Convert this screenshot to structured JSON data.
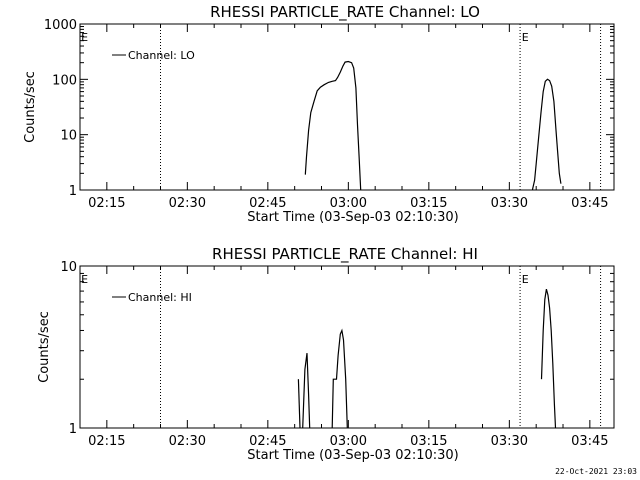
{
  "timestamp": "22-Oct-2021 23:03",
  "chart_data": [
    {
      "type": "line",
      "title": "RHESSI PARTICLE_RATE Channel: LO",
      "xlabel": "Start Time (03-Sep-03 02:10:30)",
      "ylabel": "Counts/sec",
      "yscale": "log",
      "xlim_minutes": [
        130.0,
        229.5
      ],
      "ylim": [
        1,
        1000
      ],
      "xticks": [
        {
          "t": 135,
          "label": "02:15"
        },
        {
          "t": 150,
          "label": "02:30"
        },
        {
          "t": 165,
          "label": "02:45"
        },
        {
          "t": 180,
          "label": "03:00"
        },
        {
          "t": 195,
          "label": "03:15"
        },
        {
          "t": 210,
          "label": "03:30"
        },
        {
          "t": 225,
          "label": "03:45"
        }
      ],
      "yticks": [
        {
          "v": 1,
          "label": "1"
        },
        {
          "v": 10,
          "label": "10"
        },
        {
          "v": 100,
          "label": "100"
        },
        {
          "v": 1000,
          "label": "1000"
        }
      ],
      "minor_yticks": [
        2,
        3,
        4,
        5,
        6,
        7,
        8,
        9,
        20,
        30,
        40,
        50,
        60,
        70,
        80,
        90,
        200,
        300,
        400,
        500,
        600,
        700,
        800,
        900
      ],
      "legend": "Channel: LO",
      "vlines": [
        145,
        212,
        227
      ],
      "markers": [
        {
          "t": 130.2,
          "text": "E"
        },
        {
          "t": 212.3,
          "text": "E"
        }
      ],
      "segments": [
        [
          [
            172.0,
            1.9
          ],
          [
            172.0,
            2.0
          ],
          [
            172.2,
            4.0
          ],
          [
            172.6,
            12
          ],
          [
            173.0,
            25
          ],
          [
            173.6,
            40
          ],
          [
            174.2,
            62
          ],
          [
            174.8,
            72
          ],
          [
            175.5,
            80
          ],
          [
            176.3,
            88
          ],
          [
            177.0,
            92
          ],
          [
            177.6,
            95
          ],
          [
            178.0,
            108
          ],
          [
            178.5,
            135
          ],
          [
            179.0,
            175
          ],
          [
            179.4,
            205
          ],
          [
            180.0,
            210
          ],
          [
            180.6,
            200
          ],
          [
            181.0,
            160
          ],
          [
            181.4,
            70
          ],
          [
            181.7,
            15
          ],
          [
            182.0,
            4
          ],
          [
            182.3,
            1
          ]
        ],
        [
          [
            214.3,
            1
          ],
          [
            214.7,
            1.5
          ],
          [
            215.0,
            3
          ],
          [
            215.5,
            10
          ],
          [
            215.9,
            25
          ],
          [
            216.3,
            60
          ],
          [
            216.7,
            92
          ],
          [
            217.1,
            100
          ],
          [
            217.5,
            95
          ],
          [
            217.9,
            75
          ],
          [
            218.3,
            40
          ],
          [
            218.7,
            12
          ],
          [
            219.0,
            5
          ],
          [
            219.3,
            2
          ],
          [
            219.6,
            1.3
          ]
        ]
      ]
    },
    {
      "type": "line",
      "title": "RHESSI PARTICLE_RATE Channel: HI",
      "xlabel": "Start Time (03-Sep-03 02:10:30)",
      "ylabel": "Counts/sec",
      "yscale": "log",
      "xlim_minutes": [
        130.0,
        229.5
      ],
      "ylim": [
        1,
        10
      ],
      "xticks": [
        {
          "t": 135,
          "label": "02:15"
        },
        {
          "t": 150,
          "label": "02:30"
        },
        {
          "t": 165,
          "label": "02:45"
        },
        {
          "t": 180,
          "label": "03:00"
        },
        {
          "t": 195,
          "label": "03:15"
        },
        {
          "t": 210,
          "label": "03:30"
        },
        {
          "t": 225,
          "label": "03:45"
        }
      ],
      "yticks": [
        {
          "v": 1,
          "label": "1"
        },
        {
          "v": 10,
          "label": "10"
        }
      ],
      "minor_yticks": [
        2,
        3,
        4,
        5,
        6,
        7,
        8,
        9
      ],
      "legend": "Channel: HI",
      "vlines": [
        145,
        212,
        227
      ],
      "markers": [
        {
          "t": 130.2,
          "text": "E"
        },
        {
          "t": 212.3,
          "text": "E"
        }
      ],
      "segments": [
        [
          [
            170.7,
            2.0
          ],
          [
            171.0,
            1.0
          ]
        ],
        [
          [
            171.5,
            1.0
          ],
          [
            171.9,
            2.3
          ],
          [
            172.3,
            2.9
          ],
          [
            172.6,
            1.6
          ],
          [
            172.8,
            1.0
          ]
        ],
        [
          [
            177.0,
            1.0
          ],
          [
            177.2,
            2.0
          ],
          [
            177.8,
            2.0
          ],
          [
            178.1,
            2.8
          ],
          [
            178.5,
            3.8
          ],
          [
            178.8,
            4.0
          ],
          [
            179.1,
            3.5
          ],
          [
            179.5,
            2.0
          ],
          [
            179.8,
            1.0
          ]
        ],
        [
          [
            216.0,
            2.0
          ],
          [
            216.3,
            4.0
          ],
          [
            216.6,
            6.2
          ],
          [
            216.9,
            7.2
          ],
          [
            217.2,
            6.6
          ],
          [
            217.5,
            5.5
          ],
          [
            217.8,
            4.0
          ],
          [
            218.1,
            2.5
          ],
          [
            218.4,
            1.4
          ],
          [
            218.6,
            1.0
          ]
        ]
      ]
    }
  ]
}
